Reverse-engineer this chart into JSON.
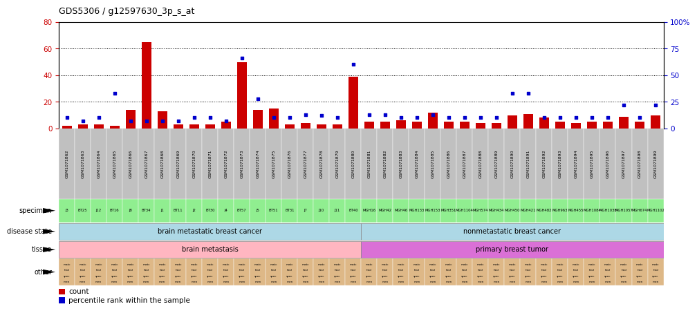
{
  "title": "GDS5306 / g12597630_3p_s_at",
  "gsm_ids": [
    "GSM1071862",
    "GSM1071863",
    "GSM1071864",
    "GSM1071865",
    "GSM1071866",
    "GSM1071867",
    "GSM1071868",
    "GSM1071869",
    "GSM1071870",
    "GSM1071871",
    "GSM1071872",
    "GSM1071873",
    "GSM1071874",
    "GSM1071875",
    "GSM1071876",
    "GSM1071877",
    "GSM1071878",
    "GSM1071879",
    "GSM1071880",
    "GSM1071881",
    "GSM1071882",
    "GSM1071883",
    "GSM1071884",
    "GSM1071885",
    "GSM1071886",
    "GSM1071887",
    "GSM1071888",
    "GSM1071889",
    "GSM1071890",
    "GSM1071891",
    "GSM1071892",
    "GSM1071893",
    "GSM1071894",
    "GSM1071895",
    "GSM1071896",
    "GSM1071897",
    "GSM1071898",
    "GSM1071899"
  ],
  "specimens": [
    "J3",
    "BT25",
    "J12",
    "BT16",
    "J8",
    "BT34",
    "J1",
    "BT11",
    "J2",
    "BT30",
    "J4",
    "BT57",
    "J5",
    "BT51",
    "BT31",
    "J7",
    "J10",
    "J11",
    "BT40",
    "MGH16",
    "MGH42",
    "MGH46",
    "MGH133",
    "MGH153",
    "MGH351",
    "MGH1104",
    "MGH574",
    "MGH434",
    "MGH450",
    "MGH421",
    "MGH482",
    "MGH963",
    "MGH455",
    "MGH1084",
    "MGH1038",
    "MGH1057",
    "MGH674",
    "MGH1102"
  ],
  "count_values": [
    2,
    3,
    3,
    2,
    14,
    65,
    13,
    3,
    3,
    3,
    5,
    50,
    14,
    15,
    3,
    4,
    3,
    3,
    39,
    5,
    5,
    6,
    5,
    12,
    5,
    5,
    4,
    4,
    10,
    11,
    8,
    5,
    4,
    5,
    5,
    9,
    5,
    10
  ],
  "percentile_values": [
    10,
    7,
    10,
    33,
    7,
    7,
    7,
    7,
    10,
    10,
    7,
    66,
    28,
    10,
    10,
    13,
    12,
    10,
    60,
    13,
    13,
    10,
    10,
    13,
    10,
    10,
    10,
    10,
    33,
    33,
    10,
    10,
    10,
    10,
    10,
    22,
    10,
    22
  ],
  "specimen_color_g1": "#90EE90",
  "specimen_color_g2": "#90EE90",
  "gsm_label_bg": "#C0C0C0",
  "disease_state_color": "#ADD8E6",
  "tissue_color_g1": "#FFB6C1",
  "tissue_color_g2": "#DA70D6",
  "other_color": "#DEB887",
  "n_group1": 19,
  "n_group2": 19,
  "disease_state_label1": "brain metastatic breast cancer",
  "disease_state_label2": "nonmetastatic breast cancer",
  "tissue_label1": "brain metastasis",
  "tissue_label2": "primary breast tumor",
  "ylim_left": [
    0,
    80
  ],
  "ylim_right": [
    0,
    100
  ],
  "yticks_left": [
    0,
    20,
    40,
    60,
    80
  ],
  "yticks_right": [
    0,
    25,
    50,
    75,
    100
  ],
  "bar_color": "#CC0000",
  "dot_color": "#0000CC",
  "axis_color_left": "#CC0000",
  "axis_color_right": "#0000CC"
}
